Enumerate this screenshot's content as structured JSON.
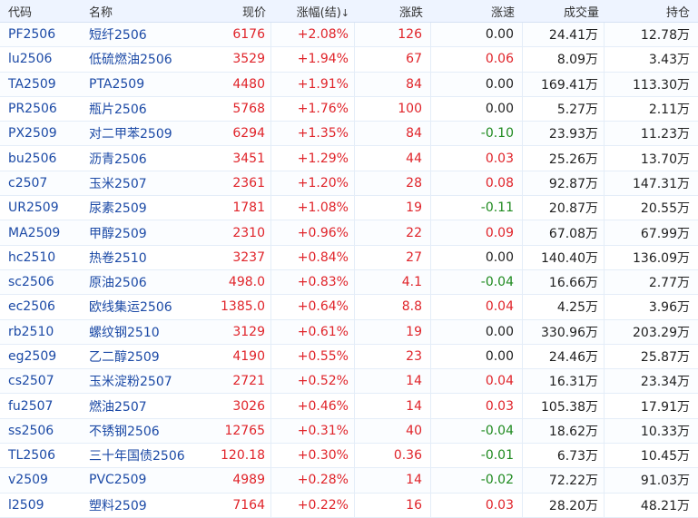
{
  "columns": {
    "code": "代码",
    "name": "名称",
    "price": "现价",
    "change_pct": "涨幅(结)",
    "sort_arrow": "↓",
    "change": "涨跌",
    "speed": "涨速",
    "volume": "成交量",
    "open_interest": "持仓"
  },
  "colors": {
    "up": "#e0242a",
    "down": "#1f8a1f",
    "flat": "#222222",
    "code": "#1c4aa6"
  },
  "rows": [
    {
      "code": "PF2506",
      "name": "短纤2506",
      "price": "6176",
      "change_pct": "+2.08%",
      "change": "126",
      "speed": "0.00",
      "speed_dir": "flat",
      "volume": "24.41万",
      "open_interest": "12.78万"
    },
    {
      "code": "lu2506",
      "name": "低硫燃油2506",
      "price": "3529",
      "change_pct": "+1.94%",
      "change": "67",
      "speed": "0.06",
      "speed_dir": "up",
      "volume": "8.09万",
      "open_interest": "3.43万"
    },
    {
      "code": "TA2509",
      "name": "PTA2509",
      "price": "4480",
      "change_pct": "+1.91%",
      "change": "84",
      "speed": "0.00",
      "speed_dir": "flat",
      "volume": "169.41万",
      "open_interest": "113.30万"
    },
    {
      "code": "PR2506",
      "name": "瓶片2506",
      "price": "5768",
      "change_pct": "+1.76%",
      "change": "100",
      "speed": "0.00",
      "speed_dir": "flat",
      "volume": "5.27万",
      "open_interest": "2.11万"
    },
    {
      "code": "PX2509",
      "name": "对二甲苯2509",
      "price": "6294",
      "change_pct": "+1.35%",
      "change": "84",
      "speed": "-0.10",
      "speed_dir": "down",
      "volume": "23.93万",
      "open_interest": "11.23万"
    },
    {
      "code": "bu2506",
      "name": "沥青2506",
      "price": "3451",
      "change_pct": "+1.29%",
      "change": "44",
      "speed": "0.03",
      "speed_dir": "up",
      "volume": "25.26万",
      "open_interest": "13.70万"
    },
    {
      "code": "c2507",
      "name": "玉米2507",
      "price": "2361",
      "change_pct": "+1.20%",
      "change": "28",
      "speed": "0.08",
      "speed_dir": "up",
      "volume": "92.87万",
      "open_interest": "147.31万"
    },
    {
      "code": "UR2509",
      "name": "尿素2509",
      "price": "1781",
      "change_pct": "+1.08%",
      "change": "19",
      "speed": "-0.11",
      "speed_dir": "down",
      "volume": "20.87万",
      "open_interest": "20.55万"
    },
    {
      "code": "MA2509",
      "name": "甲醇2509",
      "price": "2310",
      "change_pct": "+0.96%",
      "change": "22",
      "speed": "0.09",
      "speed_dir": "up",
      "volume": "67.08万",
      "open_interest": "67.99万"
    },
    {
      "code": "hc2510",
      "name": "热卷2510",
      "price": "3237",
      "change_pct": "+0.84%",
      "change": "27",
      "speed": "0.00",
      "speed_dir": "flat",
      "volume": "140.40万",
      "open_interest": "136.09万"
    },
    {
      "code": "sc2506",
      "name": "原油2506",
      "price": "498.0",
      "change_pct": "+0.83%",
      "change": "4.1",
      "speed": "-0.04",
      "speed_dir": "down",
      "volume": "16.66万",
      "open_interest": "2.77万"
    },
    {
      "code": "ec2506",
      "name": "欧线集运2506",
      "price": "1385.0",
      "change_pct": "+0.64%",
      "change": "8.8",
      "speed": "0.04",
      "speed_dir": "up",
      "volume": "4.25万",
      "open_interest": "3.96万"
    },
    {
      "code": "rb2510",
      "name": "螺纹钢2510",
      "price": "3129",
      "change_pct": "+0.61%",
      "change": "19",
      "speed": "0.00",
      "speed_dir": "flat",
      "volume": "330.96万",
      "open_interest": "203.29万"
    },
    {
      "code": "eg2509",
      "name": "乙二醇2509",
      "price": "4190",
      "change_pct": "+0.55%",
      "change": "23",
      "speed": "0.00",
      "speed_dir": "flat",
      "volume": "24.46万",
      "open_interest": "25.87万"
    },
    {
      "code": "cs2507",
      "name": "玉米淀粉2507",
      "price": "2721",
      "change_pct": "+0.52%",
      "change": "14",
      "speed": "0.04",
      "speed_dir": "up",
      "volume": "16.31万",
      "open_interest": "23.34万"
    },
    {
      "code": "fu2507",
      "name": "燃油2507",
      "price": "3026",
      "change_pct": "+0.46%",
      "change": "14",
      "speed": "0.03",
      "speed_dir": "up",
      "volume": "105.38万",
      "open_interest": "17.91万"
    },
    {
      "code": "ss2506",
      "name": "不锈钢2506",
      "price": "12765",
      "change_pct": "+0.31%",
      "change": "40",
      "speed": "-0.04",
      "speed_dir": "down",
      "volume": "18.62万",
      "open_interest": "10.33万"
    },
    {
      "code": "TL2506",
      "name": "三十年国债2506",
      "price": "120.18",
      "change_pct": "+0.30%",
      "change": "0.36",
      "speed": "-0.01",
      "speed_dir": "down",
      "volume": "6.73万",
      "open_interest": "10.45万"
    },
    {
      "code": "v2509",
      "name": "PVC2509",
      "price": "4989",
      "change_pct": "+0.28%",
      "change": "14",
      "speed": "-0.02",
      "speed_dir": "down",
      "volume": "72.22万",
      "open_interest": "91.03万"
    },
    {
      "code": "l2509",
      "name": "塑料2509",
      "price": "7164",
      "change_pct": "+0.22%",
      "change": "16",
      "speed": "0.03",
      "speed_dir": "up",
      "volume": "28.20万",
      "open_interest": "48.21万"
    }
  ]
}
